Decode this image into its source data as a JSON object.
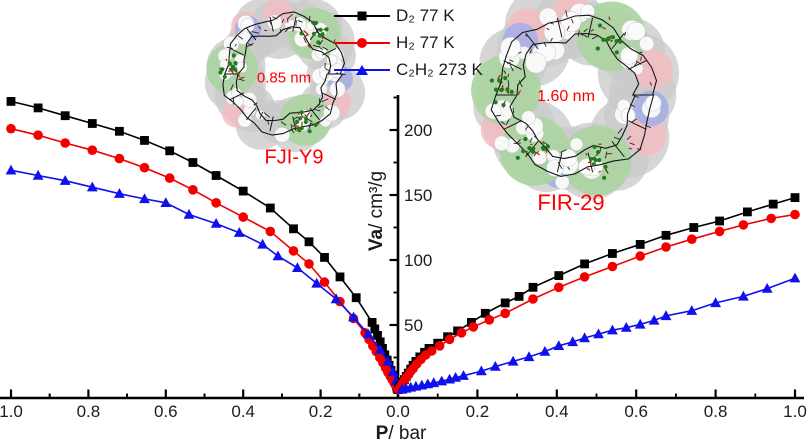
{
  "legend": {
    "items": [
      {
        "label": "D₂ 77 K",
        "marker": "square",
        "color": "#000000"
      },
      {
        "label": "H₂ 77 K",
        "marker": "circle",
        "color": "#f20000"
      },
      {
        "label": "C₂H₂ 273 K",
        "marker": "triangle",
        "color": "#1010ee"
      }
    ]
  },
  "structures": [
    {
      "name": "FJI-Y9",
      "pore_size": "0.85 nm",
      "label_color": "#fe0000"
    },
    {
      "name": "FIR-29",
      "pore_size": "1.60 nm",
      "label_color": "#fe0000"
    }
  ],
  "chart_data": {
    "type": "line",
    "layout": "mirrored double-isotherm, shared central y-axis, left x-axis reversed",
    "xlabel": {
      "bold": "P",
      "rest": "/ bar"
    },
    "ylabel": {
      "bold": "Va",
      "rest": "/ cm³/g"
    },
    "x_tick_labels_left": [
      "1.0",
      "0.8",
      "0.6",
      "0.4",
      "0.2"
    ],
    "x_tick_label_center": "0.0",
    "x_tick_labels_right": [
      "0.2",
      "0.4",
      "0.6",
      "0.8",
      "1.0"
    ],
    "y_tick_labels": [
      "50",
      "100",
      "150",
      "200"
    ],
    "x_range_bar": [
      0,
      1
    ],
    "ylim": [
      0,
      225
    ],
    "grid": false,
    "legend_position": "top-center",
    "panels": [
      {
        "material": "FJI-Y9",
        "side": "left",
        "series": [
          {
            "name": "D₂ 77 K",
            "color": "#000000",
            "marker": "square",
            "points": [
              [
                1.0,
                222
              ],
              [
                0.93,
                217
              ],
              [
                0.86,
                211
              ],
              [
                0.79,
                205
              ],
              [
                0.72,
                199
              ],
              [
                0.655,
                192
              ],
              [
                0.59,
                184
              ],
              [
                0.53,
                175
              ],
              [
                0.47,
                165
              ],
              [
                0.4,
                153
              ],
              [
                0.33,
                140
              ],
              [
                0.27,
                124
              ],
              [
                0.23,
                114
              ],
              [
                0.19,
                102
              ],
              [
                0.15,
                87
              ],
              [
                0.108,
                71
              ],
              [
                0.067,
                52
              ],
              [
                0.06,
                47
              ],
              [
                0.053,
                42
              ],
              [
                0.046,
                37
              ],
              [
                0.04,
                32
              ],
              [
                0.034,
                27
              ],
              [
                0.028,
                23
              ],
              [
                0.023,
                19
              ],
              [
                0.018,
                15
              ],
              [
                0.014,
                11.5
              ],
              [
                0.01,
                8
              ],
              [
                0.007,
                5.5
              ],
              [
                0.004,
                3
              ],
              [
                0.002,
                1.5
              ],
              [
                0.0005,
                0.3
              ]
            ]
          },
          {
            "name": "H₂ 77 K",
            "color": "#f20000",
            "marker": "circle",
            "points": [
              [
                1.0,
                201
              ],
              [
                0.93,
                196
              ],
              [
                0.86,
                190
              ],
              [
                0.79,
                184.5
              ],
              [
                0.72,
                178
              ],
              [
                0.655,
                171
              ],
              [
                0.59,
                163
              ],
              [
                0.53,
                154
              ],
              [
                0.47,
                144
              ],
              [
                0.4,
                133
              ],
              [
                0.33,
                122
              ],
              [
                0.27,
                107
              ],
              [
                0.23,
                97
              ],
              [
                0.19,
                83
              ],
              [
                0.15,
                68
              ],
              [
                0.115,
                55
              ],
              [
                0.085,
                44
              ],
              [
                0.075,
                39
              ],
              [
                0.065,
                34
              ],
              [
                0.056,
                29.5
              ],
              [
                0.047,
                25
              ],
              [
                0.039,
                21
              ],
              [
                0.032,
                17
              ],
              [
                0.026,
                13.5
              ],
              [
                0.02,
                10.5
              ],
              [
                0.015,
                8
              ],
              [
                0.01,
                5.5
              ],
              [
                0.006,
                3.5
              ],
              [
                0.003,
                1.8
              ],
              [
                0.0005,
                0.3
              ]
            ]
          },
          {
            "name": "C₂H₂ 273 K",
            "color": "#1010ee",
            "marker": "triangle",
            "points": [
              [
                1.0,
                169
              ],
              [
                0.93,
                165
              ],
              [
                0.86,
                161
              ],
              [
                0.79,
                156
              ],
              [
                0.72,
                151
              ],
              [
                0.655,
                147
              ],
              [
                0.6,
                144
              ],
              [
                0.54,
                135
              ],
              [
                0.47,
                128
              ],
              [
                0.41,
                121
              ],
              [
                0.35,
                112
              ],
              [
                0.31,
                103
              ],
              [
                0.26,
                94
              ],
              [
                0.21,
                82
              ],
              [
                0.16,
                70
              ],
              [
                0.115,
                56
              ],
              [
                0.077,
                43
              ],
              [
                0.046,
                31
              ],
              [
                0.026,
                22
              ],
              [
                0.013,
                14
              ],
              [
                0.005,
                7
              ],
              [
                0.001,
                1.5
              ]
            ]
          }
        ]
      },
      {
        "material": "FIR-29",
        "side": "right",
        "series": [
          {
            "name": "D₂ 77 K",
            "color": "#000000",
            "marker": "square",
            "points": [
              [
                0.001,
                0.5
              ],
              [
                0.002,
                1
              ],
              [
                0.005,
                2.5
              ],
              [
                0.008,
                4
              ],
              [
                0.012,
                6
              ],
              [
                0.016,
                8
              ],
              [
                0.021,
                10.5
              ],
              [
                0.026,
                13
              ],
              [
                0.032,
                16
              ],
              [
                0.038,
                19
              ],
              [
                0.045,
                22
              ],
              [
                0.055,
                25.5
              ],
              [
                0.067,
                29
              ],
              [
                0.078,
                32
              ],
              [
                0.1,
                36
              ],
              [
                0.125,
                41
              ],
              [
                0.15,
                45.5
              ],
              [
                0.185,
                52
              ],
              [
                0.22,
                59
              ],
              [
                0.27,
                67
              ],
              [
                0.305,
                72
              ],
              [
                0.34,
                79
              ],
              [
                0.405,
                88
              ],
              [
                0.47,
                97
              ],
              [
                0.54,
                105
              ],
              [
                0.61,
                112
              ],
              [
                0.675,
                119
              ],
              [
                0.745,
                125
              ],
              [
                0.81,
                130
              ],
              [
                0.88,
                137
              ],
              [
                0.945,
                143
              ],
              [
                1.0,
                148
              ]
            ]
          },
          {
            "name": "H₂ 77 K",
            "color": "#f20000",
            "marker": "circle",
            "points": [
              [
                0.001,
                0.4
              ],
              [
                0.003,
                1.2
              ],
              [
                0.007,
                3
              ],
              [
                0.012,
                5.5
              ],
              [
                0.017,
                8
              ],
              [
                0.023,
                10.5
              ],
              [
                0.03,
                13.5
              ],
              [
                0.038,
                16.5
              ],
              [
                0.047,
                20
              ],
              [
                0.058,
                23.5
              ],
              [
                0.07,
                27
              ],
              [
                0.085,
                30
              ],
              [
                0.105,
                34
              ],
              [
                0.13,
                39
              ],
              [
                0.16,
                44
              ],
              [
                0.19,
                48.5
              ],
              [
                0.23,
                54
              ],
              [
                0.27,
                59
              ],
              [
                0.34,
                70
              ],
              [
                0.405,
                79
              ],
              [
                0.47,
                87
              ],
              [
                0.54,
                95
              ],
              [
                0.61,
                103
              ],
              [
                0.675,
                110
              ],
              [
                0.74,
                116
              ],
              [
                0.81,
                122
              ],
              [
                0.87,
                127
              ],
              [
                0.94,
                132
              ],
              [
                1.0,
                135
              ]
            ]
          },
          {
            "name": "C₂H₂ 273 K",
            "color": "#1010ee",
            "marker": "triangle",
            "points": [
              [
                0.01,
                0.5
              ],
              [
                0.02,
                1.2
              ],
              [
                0.032,
                2
              ],
              [
                0.045,
                2.8
              ],
              [
                0.06,
                3.6
              ],
              [
                0.075,
                4.5
              ],
              [
                0.09,
                5.5
              ],
              [
                0.11,
                6.8
              ],
              [
                0.13,
                8.2
              ],
              [
                0.145,
                9.5
              ],
              [
                0.165,
                11
              ],
              [
                0.21,
                14.5
              ],
              [
                0.245,
                18
              ],
              [
                0.29,
                22
              ],
              [
                0.33,
                25.5
              ],
              [
                0.37,
                29.5
              ],
              [
                0.405,
                34
              ],
              [
                0.44,
                37
              ],
              [
                0.47,
                40
              ],
              [
                0.505,
                43
              ],
              [
                0.54,
                46
              ],
              [
                0.575,
                48
              ],
              [
                0.61,
                50.5
              ],
              [
                0.645,
                53.5
              ],
              [
                0.675,
                57
              ],
              [
                0.74,
                61
              ],
              [
                0.8,
                67
              ],
              [
                0.87,
                72
              ],
              [
                0.93,
                78
              ],
              [
                1.0,
                86
              ]
            ]
          }
        ]
      }
    ]
  }
}
